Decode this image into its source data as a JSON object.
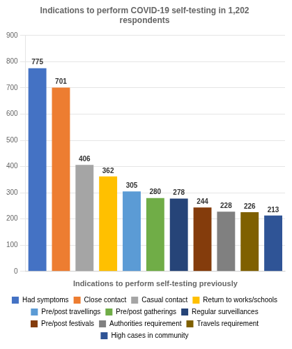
{
  "chart_data": {
    "type": "bar",
    "title": "Indications to perform COVID-19 self-testing in 1,202\nrespondents",
    "xlabel": "Indications to perform self-testing previously",
    "categories": [
      "Had symptoms",
      "Close contact",
      "Casual contact",
      "Return to works/schools",
      "Pre/post travellings",
      "Pre/post gatherings",
      "Regular surveillances",
      "Pre/post festivals",
      "Authorities requirement",
      "Travels requirement",
      "High cases in community"
    ],
    "values": [
      775,
      701,
      406,
      362,
      305,
      280,
      278,
      244,
      228,
      226,
      213
    ],
    "colors": [
      "#4472C4",
      "#ED7D31",
      "#A5A5A5",
      "#FFC000",
      "#5B9BD5",
      "#70AD47",
      "#264478",
      "#843C0C",
      "#808080",
      "#7F6000",
      "#2F5496"
    ],
    "ylim": [
      0,
      900
    ],
    "yticks": [
      0,
      100,
      200,
      300,
      400,
      500,
      600,
      700,
      800,
      900
    ],
    "grid": true,
    "legend": "bottom",
    "data_labels": true,
    "tick_labels": "y"
  }
}
